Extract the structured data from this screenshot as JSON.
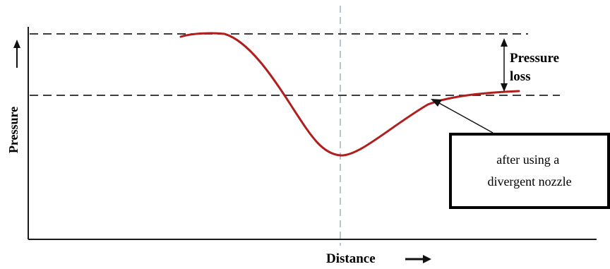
{
  "diagram": {
    "y_axis_label": "Pressure",
    "x_axis_label": "Distance",
    "annotation_loss": [
      "Pressure",
      "loss"
    ],
    "callout_lines": [
      "after using a",
      "divergent nozzle"
    ]
  },
  "colors": {
    "curve": "#b01e1e",
    "axis": "#1a1a1a",
    "dashed_reference": "#222222",
    "center_line": "#9fb3c8",
    "callout_border": "#000000"
  }
}
